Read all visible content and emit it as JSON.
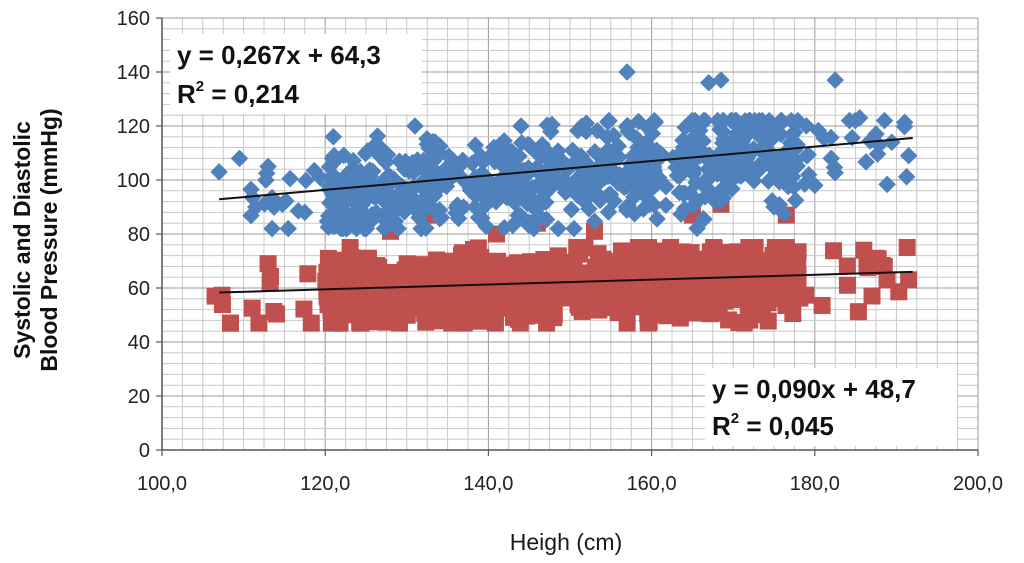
{
  "chart_data": {
    "type": "scatter",
    "xlabel": "Heigh (cm)",
    "ylabel": [
      "Systolic and Diastolic",
      "Blood Pressure (mmHg)"
    ],
    "xlim": [
      100,
      200
    ],
    "ylim": [
      0,
      160
    ],
    "x_tick_labels": [
      "100,0",
      "120,0",
      "140,0",
      "160,0",
      "180,0",
      "200,0"
    ],
    "y_tick_labels": [
      "0",
      "20",
      "40",
      "60",
      "80",
      "100",
      "120",
      "140",
      "160"
    ],
    "grid": true,
    "series": [
      {
        "color": "#4f81bd",
        "marker": "diamond",
        "x_range": [
          107,
          192
        ],
        "y_spread": [
          82,
          122
        ],
        "trendline": {
          "slope": 0.267,
          "intercept": 64.3
        },
        "equation": "y = 0,267x + 64,3",
        "r2_label": "R",
        "r2_value": " = 0,214",
        "outliers": [
          [
            107,
            103
          ],
          [
            109.5,
            108
          ],
          [
            111.5,
            90
          ],
          [
            113,
            105
          ],
          [
            117.5,
            88
          ],
          [
            121,
            116
          ],
          [
            131,
            120
          ],
          [
            157,
            140
          ],
          [
            167,
            136
          ],
          [
            168.5,
            137
          ],
          [
            182.5,
            137
          ],
          [
            185.5,
            123
          ],
          [
            187.5,
            117
          ],
          [
            191.5,
            109
          ],
          [
            180,
            98
          ],
          [
            175,
            90
          ],
          [
            144,
            120
          ],
          [
            152,
            121
          ]
        ]
      },
      {
        "color": "#c0504d",
        "marker": "square",
        "x_range": [
          107,
          192
        ],
        "y_spread": [
          47,
          75
        ],
        "trendline": {
          "slope": 0.09,
          "intercept": 48.7
        },
        "equation": "y = 0,090x + 48,7",
        "r2_label": "R",
        "r2_value": " = 0,045",
        "outliers": [
          [
            106.5,
            57
          ],
          [
            113,
            69
          ],
          [
            128,
            81
          ],
          [
            132.5,
            87
          ],
          [
            141,
            80
          ],
          [
            146,
            84
          ],
          [
            153,
            81
          ],
          [
            165,
            87
          ],
          [
            168.5,
            91
          ],
          [
            176.5,
            87
          ],
          [
            186,
            74
          ],
          [
            187.5,
            71
          ],
          [
            191.5,
            63
          ],
          [
            184,
            61
          ],
          [
            165,
            52
          ],
          [
            148,
            49
          ],
          [
            126,
            48
          ],
          [
            157,
            47
          ]
        ]
      }
    ]
  }
}
